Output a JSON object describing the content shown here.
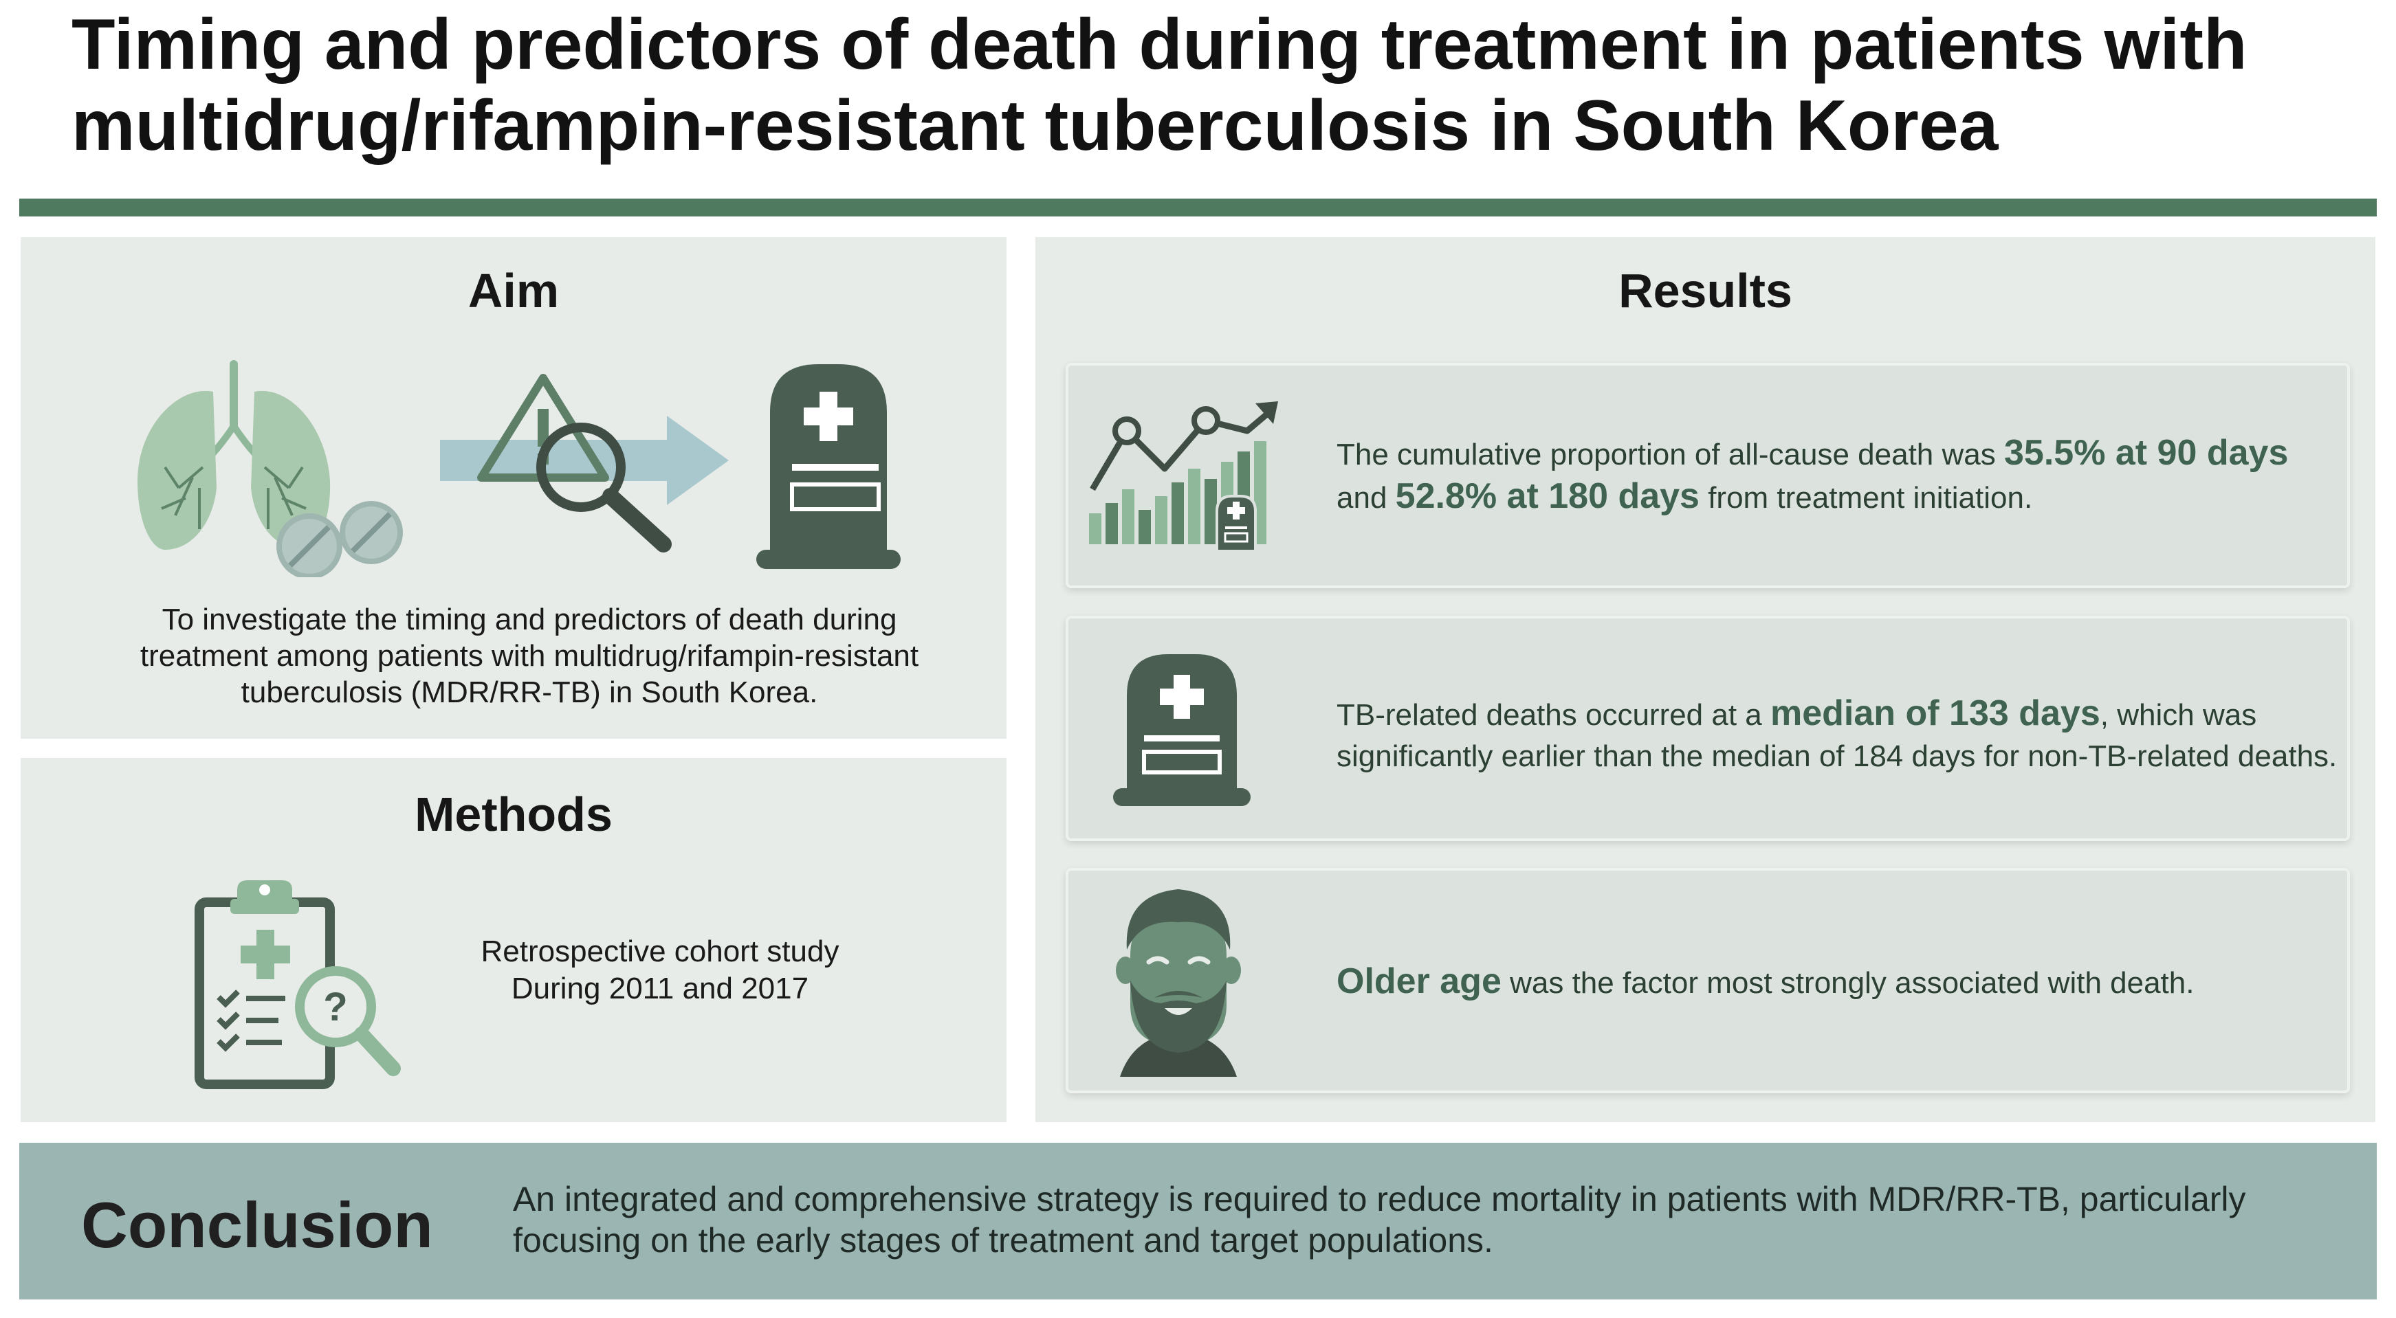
{
  "title": {
    "line1": "Timing and predictors of death during treatment in patients with",
    "line2": "multidrug/rifampin-resistant tuberculosis in South Korea"
  },
  "aim": {
    "heading": "Aim",
    "text": "To investigate the timing and predictors of death during treatment among patients with multidrug/rifampin-resistant tuberculosis (MDR/RR-TB) in South Korea."
  },
  "methods": {
    "heading": "Methods",
    "line1": "Retrospective cohort study",
    "line2": "During 2011 and 2017"
  },
  "results": {
    "heading": "Results",
    "items": [
      {
        "pre": "The cumulative proportion of all-cause death was",
        "bold1": "35.5% at 90 days",
        "mid": "and",
        "bold2": "52.8% at 180 days",
        "post": "from treatment initiation."
      },
      {
        "pre": "TB-related deaths occurred at a",
        "bold": "median of 133 days",
        "post": ", which was",
        "line2": "significantly earlier than the median of 184 days for non-TB-related deaths."
      },
      {
        "bold": "Older age",
        "post": "was the factor most strongly associated with death."
      }
    ]
  },
  "conclusion": {
    "label": "Conclusion",
    "text": "An integrated and comprehensive strategy is required to reduce mortality in patients with MDR/RR-TB, particularly focusing on the early stages of treatment and target populations."
  },
  "icons": {
    "lungs": "lungs-icon",
    "pills": "pills-icon",
    "arrow": "arrow-icon",
    "warning": "warning-icon",
    "magnifier": "magnifier-icon",
    "tombstone": "tombstone-icon",
    "clipboard": "clipboard-icon",
    "chart": "rising-chart-icon",
    "person": "bearded-man-icon"
  },
  "colors": {
    "accent_dark": "#4a5e52",
    "accent_green": "#507a60",
    "light_green": "#8fb89a",
    "panel_bg": "#e8ece8",
    "card_bg": "#dce3df",
    "conclusion_bg": "#9bb5b2",
    "highlight_text": "#3f6350"
  }
}
